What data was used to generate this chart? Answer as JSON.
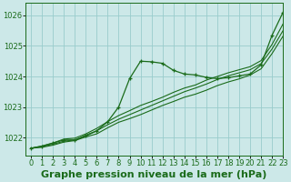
{
  "title": "Graphe pression niveau de la mer (hPa)",
  "bg_color": "#cce8e8",
  "grid_color": "#99cccc",
  "line_color": "#1a6b1a",
  "xlim": [
    -0.5,
    23
  ],
  "ylim": [
    1021.4,
    1026.4
  ],
  "yticks": [
    1022,
    1023,
    1024,
    1025,
    1026
  ],
  "xticks": [
    0,
    1,
    2,
    3,
    4,
    5,
    6,
    7,
    8,
    9,
    10,
    11,
    12,
    13,
    14,
    15,
    16,
    17,
    18,
    19,
    20,
    21,
    22,
    23
  ],
  "series": [
    [
      1021.65,
      1021.72,
      1021.82,
      1021.92,
      1021.92,
      1022.05,
      1022.22,
      1022.52,
      1023.0,
      1023.93,
      1024.5,
      1024.48,
      1024.43,
      1024.2,
      1024.08,
      1024.05,
      1023.97,
      1023.93,
      1023.96,
      1024.02,
      1024.08,
      1024.38,
      1025.35,
      1026.1
    ],
    [
      1021.65,
      1021.72,
      1021.82,
      1021.95,
      1021.98,
      1022.12,
      1022.3,
      1022.52,
      1022.72,
      1022.88,
      1023.05,
      1023.18,
      1023.32,
      1023.48,
      1023.62,
      1023.72,
      1023.88,
      1024.0,
      1024.12,
      1024.22,
      1024.32,
      1024.52,
      1025.05,
      1025.72
    ],
    [
      1021.65,
      1021.7,
      1021.78,
      1021.88,
      1021.92,
      1022.08,
      1022.22,
      1022.42,
      1022.6,
      1022.75,
      1022.9,
      1023.05,
      1023.2,
      1023.35,
      1023.5,
      1023.62,
      1023.75,
      1023.9,
      1024.02,
      1024.12,
      1024.22,
      1024.42,
      1024.9,
      1025.5
    ],
    [
      1021.65,
      1021.68,
      1021.75,
      1021.85,
      1021.9,
      1022.02,
      1022.12,
      1022.32,
      1022.5,
      1022.62,
      1022.75,
      1022.9,
      1023.05,
      1023.18,
      1023.32,
      1023.42,
      1023.55,
      1023.7,
      1023.82,
      1023.92,
      1024.05,
      1024.25,
      1024.75,
      1025.32
    ]
  ],
  "title_fontsize": 8,
  "tick_fontsize": 6
}
